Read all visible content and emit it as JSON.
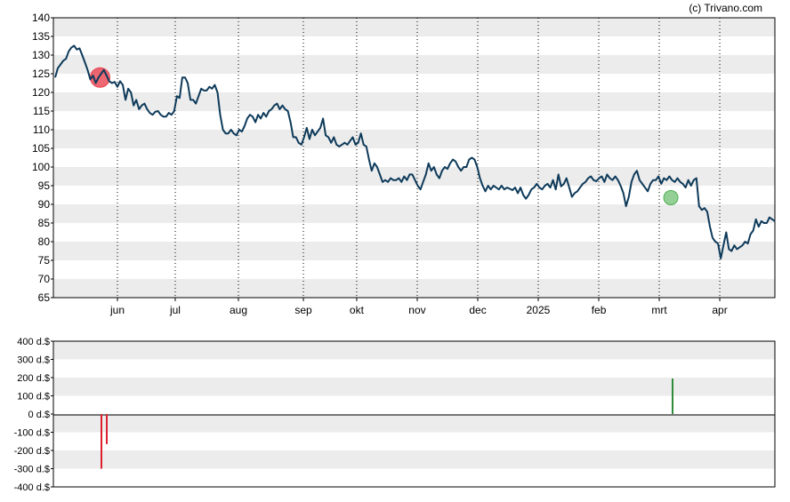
{
  "credit": "(c) Trivano.com",
  "chart_data": [
    {
      "type": "line",
      "ylim": [
        65,
        140
      ],
      "y_ticks": [
        65,
        70,
        75,
        80,
        85,
        90,
        95,
        100,
        105,
        110,
        115,
        120,
        125,
        130,
        135,
        140
      ],
      "months": [
        "jun",
        "jul",
        "aug",
        "sep",
        "okt",
        "nov",
        "dec",
        "2025",
        "feb",
        "mrt",
        "apr"
      ],
      "grid": "horizontal bands + dotted monthly verticals",
      "series": [
        {
          "color": "#0d3a5a",
          "values": [
            124,
            126.5,
            127.5,
            128.5,
            129,
            131,
            132,
            132.5,
            131.5,
            131.8,
            130,
            128,
            126,
            123.5,
            124.5,
            122.5,
            124,
            125,
            126,
            124.5,
            123,
            122.5,
            122.8,
            121.5,
            123,
            122,
            118,
            121,
            120,
            116.5,
            118,
            115.5,
            116.5,
            117,
            115.5,
            114.5,
            114,
            114.8,
            115,
            114,
            113.5,
            113.5,
            114.5,
            114,
            115,
            119,
            118.5,
            124,
            124,
            122.5,
            118,
            118,
            117,
            119,
            121,
            120.5,
            120.5,
            121.5,
            121,
            122,
            120,
            114,
            110,
            109,
            109,
            110,
            109,
            108.5,
            110,
            109.5,
            111,
            113,
            114,
            113.5,
            112,
            114,
            113,
            114.5,
            113.5,
            115,
            115.5,
            116.5,
            117,
            115.5,
            116.5,
            115.5,
            115,
            112,
            108,
            108,
            106.5,
            106,
            108,
            110.5,
            107.5,
            110,
            108.5,
            109.5,
            110.5,
            113,
            108.5,
            108,
            106.5,
            108,
            106,
            105.5,
            106,
            106.5,
            106,
            107,
            108,
            106,
            106.5,
            109,
            106,
            105.5,
            102,
            99,
            101,
            100,
            98,
            96,
            96.5,
            96,
            97,
            96.5,
            96.5,
            97,
            96,
            97.5,
            96.5,
            98,
            98,
            96.5,
            95,
            94,
            96,
            98,
            101,
            99,
            100,
            98,
            97,
            99,
            100,
            99.5,
            101,
            102,
            101.5,
            100,
            99,
            100,
            100,
            102,
            102.5,
            102,
            100,
            97,
            95,
            93.5,
            95,
            94,
            95,
            94.5,
            94,
            95,
            94,
            94.5,
            94.2,
            93.8,
            94.5,
            93,
            94.5,
            92.5,
            91.5,
            92.5,
            94,
            94.5,
            95.5,
            94.5,
            94,
            95,
            95.5,
            94.5,
            96.5,
            94,
            98,
            94.8,
            95.5,
            97,
            94.5,
            92,
            93,
            93.5,
            94.5,
            95.5,
            96,
            97,
            97.5,
            96.5,
            96.2,
            97,
            97.5,
            96,
            98,
            97,
            96.5,
            97.5,
            96.5,
            95,
            93,
            89.5,
            92,
            96,
            98,
            99,
            96.5,
            95.5,
            94.5,
            93.5,
            95.5,
            96.5,
            96.5,
            97.5,
            95.5,
            97,
            96.5,
            97.5,
            96.5,
            96,
            97,
            96,
            95.5,
            94.5,
            96.5,
            95,
            96.5,
            97,
            89.5,
            88.5,
            89,
            88,
            84,
            81,
            80,
            79.5,
            75.5,
            79,
            82.5,
            78,
            77.5,
            79,
            78,
            78.5,
            79,
            80,
            79.5,
            82,
            83,
            86,
            84,
            85.5,
            85,
            85,
            86.5,
            86,
            85.5
          ]
        }
      ],
      "markers": [
        {
          "type": "sell",
          "value": 124,
          "color": "#e8424f"
        },
        {
          "type": "buy",
          "value": 91.8,
          "color": "#4caf50"
        }
      ]
    },
    {
      "type": "bar",
      "ylim": [
        -400,
        400
      ],
      "y_tick_labels": [
        "400 d.$",
        "300 d.$",
        "200 d.$",
        "100 d.$",
        "0 d.$",
        "-100 d.$",
        "-200 d.$",
        "-300 d.$",
        "-400 d.$"
      ],
      "y_ticks": [
        400,
        300,
        200,
        100,
        0,
        -100,
        -200,
        -300,
        -400
      ],
      "bars": [
        {
          "value": -300,
          "color": "#dd1f2f"
        },
        {
          "value": -165,
          "color": "#dd1f2f"
        },
        {
          "value": 195,
          "color": "#2e8b3a"
        }
      ]
    }
  ]
}
